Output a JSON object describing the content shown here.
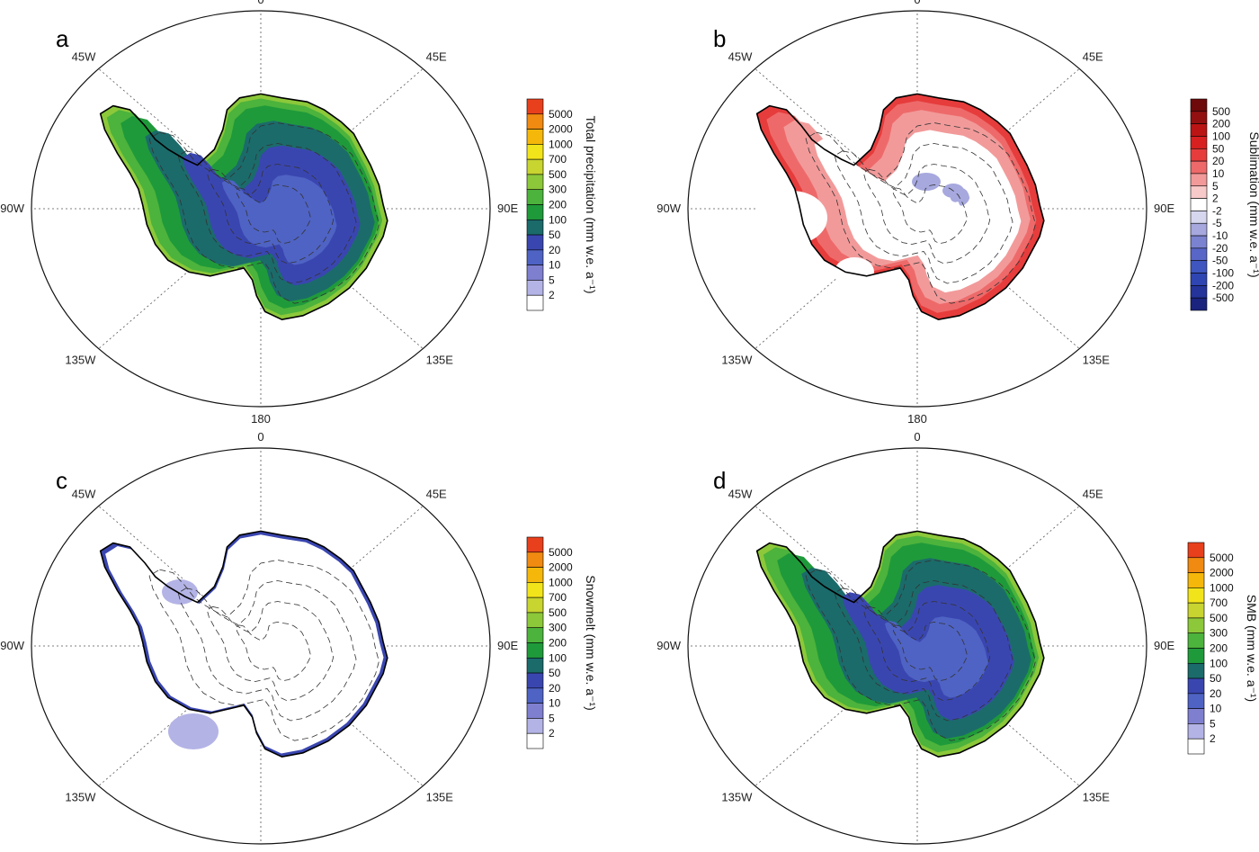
{
  "longitude_labels": [
    "0",
    "45E",
    "90E",
    "135E",
    "180",
    "135W",
    "90W",
    "45W"
  ],
  "palettes": {
    "precip": [
      "#ffffff",
      "#b3b3e6",
      "#7f7fd0",
      "#4f63c4",
      "#3a46b0",
      "#1b6b6b",
      "#1f9a3a",
      "#4cb33c",
      "#8cc83a",
      "#c8d430",
      "#f2e41a",
      "#f5b70a",
      "#f08a10",
      "#e8401c"
    ],
    "sublim": [
      "#1a237e",
      "#24349a",
      "#2f45b2",
      "#3f56c0",
      "#5866c8",
      "#7b82d0",
      "#a6a8de",
      "#d6d6ee",
      "#ffffff",
      "#f7c9c9",
      "#f29a9a",
      "#ee6a6a",
      "#e63c3c",
      "#d82020",
      "#bb1414",
      "#931010",
      "#6e0a0a"
    ]
  },
  "panels": [
    {
      "letter": "a",
      "palette": "precip",
      "field": "precip",
      "colorbar_title": "Total precipitation  (mm w.e. a⁻¹)",
      "colorbar_ticks": [
        "5000",
        "2000",
        "1000",
        "700",
        "500",
        "300",
        "200",
        "100",
        "50",
        "20",
        "10",
        "5",
        "2"
      ]
    },
    {
      "letter": "b",
      "palette": "sublim",
      "field": "sublim",
      "colorbar_title": "Sublimation  (mm w.e. a⁻¹)",
      "colorbar_ticks": [
        "500",
        "200",
        "100",
        "50",
        "20",
        "10",
        "5",
        "2",
        "-2",
        "-5",
        "-10",
        "-20",
        "-50",
        "-100",
        "-200",
        "-500"
      ]
    },
    {
      "letter": "c",
      "palette": "precip",
      "field": "melt",
      "colorbar_title": "Snowmelt  (mm w.e. a⁻¹)",
      "colorbar_ticks": [
        "5000",
        "2000",
        "1000",
        "700",
        "500",
        "300",
        "200",
        "100",
        "50",
        "20",
        "10",
        "5",
        "2"
      ]
    },
    {
      "letter": "d",
      "palette": "precip",
      "field": "smb",
      "colorbar_title": "SMB  (mm w.e. a⁻¹)",
      "colorbar_ticks": [
        "5000",
        "2000",
        "1000",
        "700",
        "500",
        "300",
        "200",
        "100",
        "50",
        "20",
        "10",
        "5",
        "2"
      ]
    }
  ]
}
